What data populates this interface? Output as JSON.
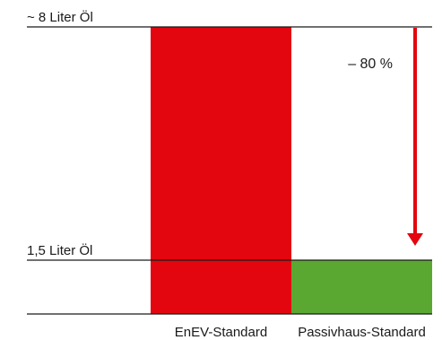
{
  "chart_data": {
    "type": "bar",
    "categories": [
      "EnEV-Standard",
      "Passivhaus-Standard"
    ],
    "values": [
      8,
      1.5
    ],
    "unit": "Liter Öl",
    "ylim": [
      0,
      8
    ],
    "reference_lines": [
      {
        "value": 8,
        "label": "~ 8 Liter Öl"
      },
      {
        "value": 1.5,
        "label": "1,5 Liter Öl"
      }
    ],
    "annotation": {
      "text": "– 80 %",
      "arrow_from": 8,
      "arrow_to": 1.5
    },
    "colors": {
      "EnEV-Standard": "#e3060f",
      "Passivhaus-Standard": "#5aa832",
      "arrow": "#e3060f",
      "lines": "#1a1a1a"
    },
    "grid": false,
    "legend": "none"
  }
}
